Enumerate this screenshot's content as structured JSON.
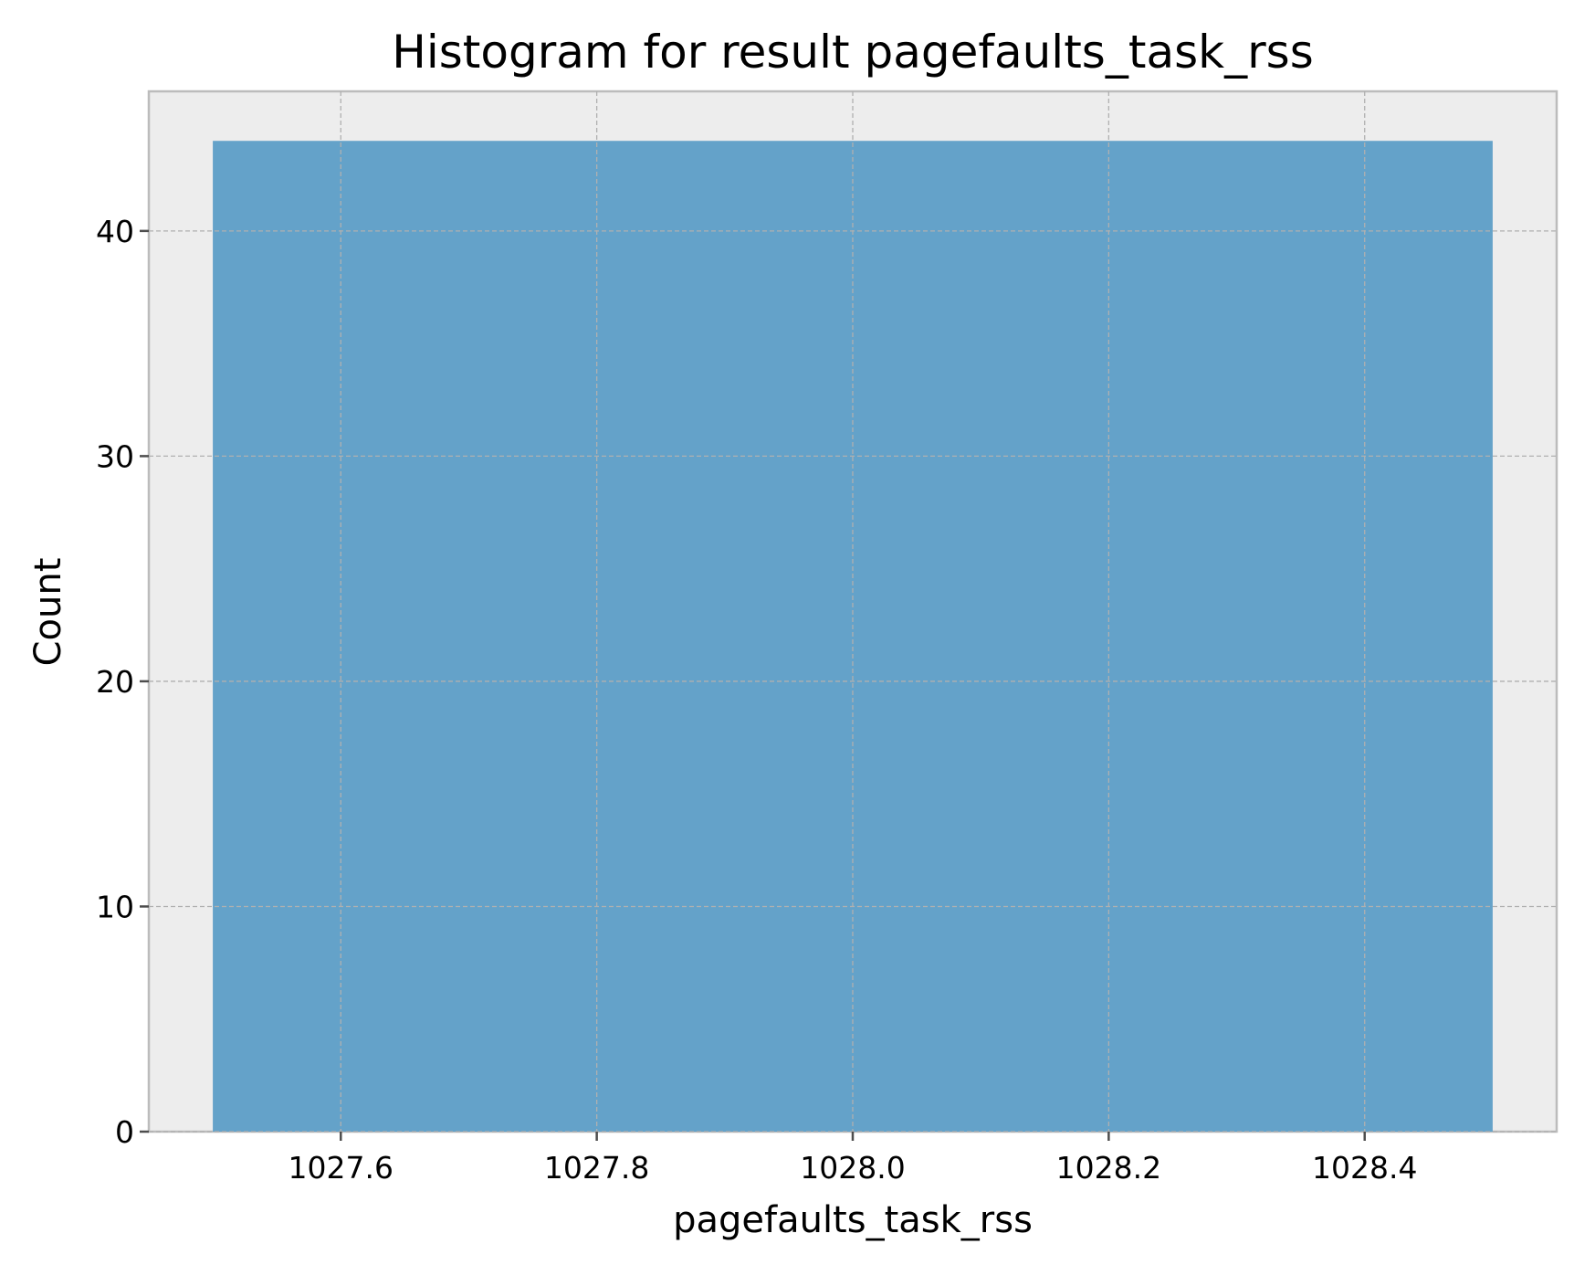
{
  "chart_data": {
    "type": "bar",
    "title": "Histogram for result pagefaults_task_rss",
    "xlabel": "pagefaults_task_rss",
    "ylabel": "Count",
    "bins": [
      {
        "x0": 1027.5,
        "x1": 1028.5,
        "count": 44
      }
    ],
    "xlim": [
      1027.45,
      1028.55
    ],
    "ylim": [
      0,
      46.2
    ],
    "xticks": [
      1027.6,
      1027.8,
      1028.0,
      1028.2,
      1028.4
    ],
    "xtick_labels": [
      "1027.6",
      "1027.8",
      "1028.0",
      "1028.2",
      "1028.4"
    ],
    "yticks": [
      0,
      10,
      20,
      30,
      40
    ],
    "ytick_labels": [
      "0",
      "10",
      "20",
      "30",
      "40"
    ],
    "grid": true,
    "colors": {
      "bar": "#64a2c9",
      "plot_background": "#ededed",
      "axes_edge": "#bcbcbc",
      "grid": "#b0b0b0"
    }
  }
}
